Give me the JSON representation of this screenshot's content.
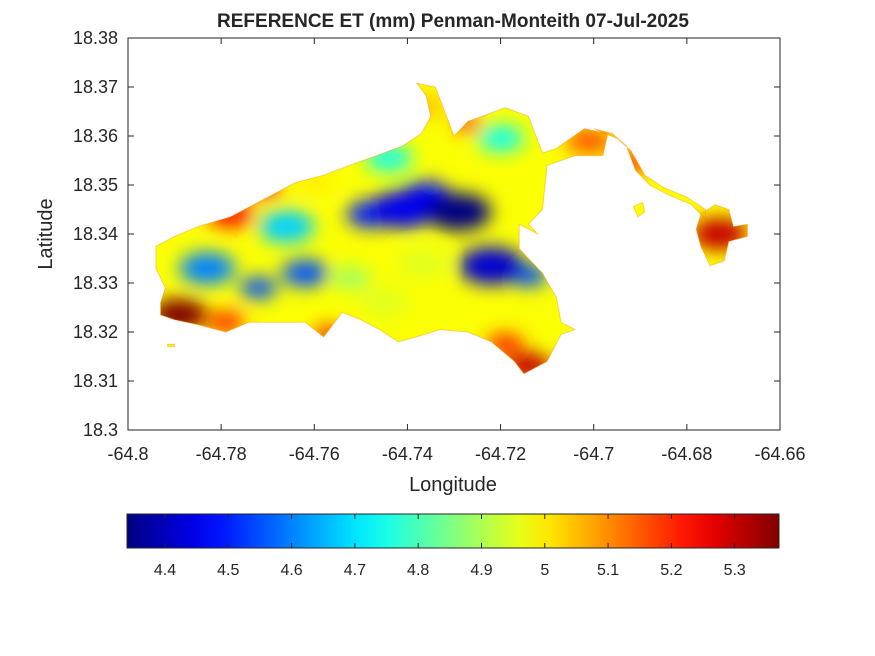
{
  "chart_data": {
    "type": "heatmap",
    "title": "REFERENCE ET (mm) Penman-Monteith 07-Jul-2025",
    "xlabel": "Longitude",
    "ylabel": "Latitude",
    "xlim": [
      -64.8,
      -64.66
    ],
    "ylim": [
      18.3,
      18.38
    ],
    "xticks": [
      -64.8,
      -64.78,
      -64.76,
      -64.74,
      -64.72,
      -64.7,
      -64.68,
      -64.66
    ],
    "xtick_labels": [
      "-64.8",
      "-64.78",
      "-64.76",
      "-64.74",
      "-64.72",
      "-64.7",
      "-64.68",
      "-64.66"
    ],
    "yticks": [
      18.3,
      18.31,
      18.32,
      18.33,
      18.34,
      18.35,
      18.36,
      18.37,
      18.38
    ],
    "ytick_labels": [
      "18.3",
      "18.31",
      "18.32",
      "18.33",
      "18.34",
      "18.35",
      "18.36",
      "18.37",
      "18.38"
    ],
    "colorbar": {
      "orientation": "horizontal",
      "colormap": "jet",
      "range": [
        4.34,
        5.37
      ],
      "ticks": [
        4.4,
        4.5,
        4.6,
        4.7,
        4.8,
        4.9,
        5,
        5.1,
        5.2,
        5.3
      ],
      "tick_labels": [
        "4.4",
        "4.5",
        "4.6",
        "4.7",
        "4.8",
        "4.9",
        "5",
        "5.1",
        "5.2",
        "5.3"
      ]
    },
    "grid": false,
    "land_outline": [
      [
        -64.794,
        18.3375
      ],
      [
        -64.79,
        18.3395
      ],
      [
        -64.785,
        18.3415
      ],
      [
        -64.778,
        18.3435
      ],
      [
        -64.77,
        18.3475
      ],
      [
        -64.764,
        18.3505
      ],
      [
        -64.758,
        18.352
      ],
      [
        -64.751,
        18.3545
      ],
      [
        -64.746,
        18.3562
      ],
      [
        -64.741,
        18.358
      ],
      [
        -64.737,
        18.3605
      ],
      [
        -64.735,
        18.364
      ],
      [
        -64.736,
        18.3682
      ],
      [
        -64.738,
        18.3708
      ],
      [
        -64.734,
        18.37
      ],
      [
        -64.73,
        18.36
      ],
      [
        -64.727,
        18.363
      ],
      [
        -64.724,
        18.364
      ],
      [
        -64.719,
        18.3658
      ],
      [
        -64.714,
        18.364
      ],
      [
        -64.711,
        18.3565
      ],
      [
        -64.708,
        18.3575
      ],
      [
        -64.702,
        18.3615
      ],
      [
        -64.697,
        18.3605
      ],
      [
        -64.698,
        18.356
      ],
      [
        -64.704,
        18.356
      ],
      [
        -64.71,
        18.354
      ],
      [
        -64.711,
        18.345
      ],
      [
        -64.714,
        18.342
      ],
      [
        -64.712,
        18.34
      ],
      [
        -64.716,
        18.342
      ],
      [
        -64.716,
        18.337
      ],
      [
        -64.711,
        18.332
      ],
      [
        -64.708,
        18.327
      ],
      [
        -64.707,
        18.322
      ],
      [
        -64.704,
        18.3205
      ],
      [
        -64.707,
        18.3195
      ],
      [
        -64.71,
        18.314
      ],
      [
        -64.715,
        18.3115
      ],
      [
        -64.717,
        18.314
      ],
      [
        -64.722,
        18.318
      ],
      [
        -64.727,
        18.32
      ],
      [
        -64.733,
        18.3205
      ],
      [
        -64.738,
        18.319
      ],
      [
        -64.742,
        18.318
      ],
      [
        -64.746,
        18.3205
      ],
      [
        -64.75,
        18.3225
      ],
      [
        -64.754,
        18.324
      ],
      [
        -64.758,
        18.319
      ],
      [
        -64.762,
        18.322
      ],
      [
        -64.768,
        18.322
      ],
      [
        -64.774,
        18.322
      ],
      [
        -64.779,
        18.32
      ],
      [
        -64.785,
        18.3215
      ],
      [
        -64.79,
        18.3225
      ],
      [
        -64.793,
        18.3235
      ],
      [
        -64.793,
        18.326
      ],
      [
        -64.792,
        18.329
      ],
      [
        -64.794,
        18.333
      ]
    ],
    "east_bay_strip": [
      [
        -64.7,
        18.3615
      ],
      [
        -64.696,
        18.3605
      ],
      [
        -64.693,
        18.358
      ],
      [
        -64.691,
        18.353
      ],
      [
        -64.688,
        18.35
      ],
      [
        -64.684,
        18.348
      ],
      [
        -64.679,
        18.346
      ],
      [
        -64.676,
        18.343
      ],
      [
        -64.676,
        18.345
      ],
      [
        -64.68,
        18.3475
      ],
      [
        -64.685,
        18.3495
      ],
      [
        -64.689,
        18.352
      ],
      [
        -64.692,
        18.357
      ],
      [
        -64.695,
        18.3595
      ]
    ],
    "east_cay_outline": [
      [
        -64.677,
        18.344
      ],
      [
        -64.674,
        18.346
      ],
      [
        -64.671,
        18.345
      ],
      [
        -64.67,
        18.3415
      ],
      [
        -64.667,
        18.342
      ],
      [
        -64.667,
        18.3395
      ],
      [
        -64.671,
        18.3385
      ],
      [
        -64.672,
        18.3345
      ],
      [
        -64.675,
        18.3335
      ],
      [
        -64.677,
        18.3375
      ],
      [
        -64.678,
        18.341
      ]
    ],
    "small_islets": [
      [
        [
          -64.7915,
          18.3175
        ],
        [
          -64.79,
          18.3175
        ],
        [
          -64.79,
          18.317
        ],
        [
          -64.7915,
          18.317
        ]
      ],
      [
        [
          -64.6915,
          18.3455
        ],
        [
          -64.6895,
          18.3465
        ],
        [
          -64.689,
          18.3445
        ],
        [
          -64.6905,
          18.3435
        ]
      ]
    ],
    "et_centers": [
      {
        "lon": -64.729,
        "lat": 18.3445,
        "value": 4.34,
        "radius": 0.007
      },
      {
        "lon": -64.722,
        "lat": 18.3335,
        "value": 4.42,
        "radius": 0.007
      },
      {
        "lon": -64.741,
        "lat": 18.345,
        "value": 4.45,
        "radius": 0.007
      },
      {
        "lon": -64.748,
        "lat": 18.344,
        "value": 4.5,
        "radius": 0.005
      },
      {
        "lon": -64.736,
        "lat": 18.348,
        "value": 4.48,
        "radius": 0.005
      },
      {
        "lon": -64.714,
        "lat": 18.3315,
        "value": 4.55,
        "radius": 0.004
      },
      {
        "lon": -64.762,
        "lat": 18.332,
        "value": 4.55,
        "radius": 0.005
      },
      {
        "lon": -64.772,
        "lat": 18.329,
        "value": 4.55,
        "radius": 0.004
      },
      {
        "lon": -64.783,
        "lat": 18.333,
        "value": 4.6,
        "radius": 0.006
      },
      {
        "lon": -64.766,
        "lat": 18.3415,
        "value": 4.68,
        "radius": 0.006
      },
      {
        "lon": -64.744,
        "lat": 18.3555,
        "value": 4.75,
        "radius": 0.005
      },
      {
        "lon": -64.72,
        "lat": 18.3595,
        "value": 4.75,
        "radius": 0.005
      },
      {
        "lon": -64.737,
        "lat": 18.334,
        "value": 4.95,
        "radius": 0.005
      },
      {
        "lon": -64.745,
        "lat": 18.326,
        "value": 4.95,
        "radius": 0.005
      },
      {
        "lon": -64.752,
        "lat": 18.331,
        "value": 4.88,
        "radius": 0.004
      },
      {
        "lon": -64.736,
        "lat": 18.366,
        "value": 5.05,
        "radius": 0.004
      },
      {
        "lon": -64.76,
        "lat": 18.3505,
        "value": 5.0,
        "radius": 0.004
      },
      {
        "lon": -64.778,
        "lat": 18.344,
        "value": 5.22,
        "radius": 0.005
      },
      {
        "lon": -64.771,
        "lat": 18.3495,
        "value": 5.2,
        "radius": 0.004
      },
      {
        "lon": -64.789,
        "lat": 18.3235,
        "value": 5.37,
        "radius": 0.006
      },
      {
        "lon": -64.779,
        "lat": 18.322,
        "value": 5.2,
        "radius": 0.004
      },
      {
        "lon": -64.757,
        "lat": 18.3195,
        "value": 5.25,
        "radius": 0.003
      },
      {
        "lon": -64.714,
        "lat": 18.313,
        "value": 5.3,
        "radius": 0.005
      },
      {
        "lon": -64.719,
        "lat": 18.3175,
        "value": 5.2,
        "radius": 0.004
      },
      {
        "lon": -64.701,
        "lat": 18.359,
        "value": 5.15,
        "radius": 0.005
      },
      {
        "lon": -64.692,
        "lat": 18.3545,
        "value": 5.18,
        "radius": 0.004
      },
      {
        "lon": -64.673,
        "lat": 18.34,
        "value": 5.3,
        "radius": 0.006
      },
      {
        "lon": -64.727,
        "lat": 18.3625,
        "value": 5.2,
        "radius": 0.003
      }
    ]
  }
}
